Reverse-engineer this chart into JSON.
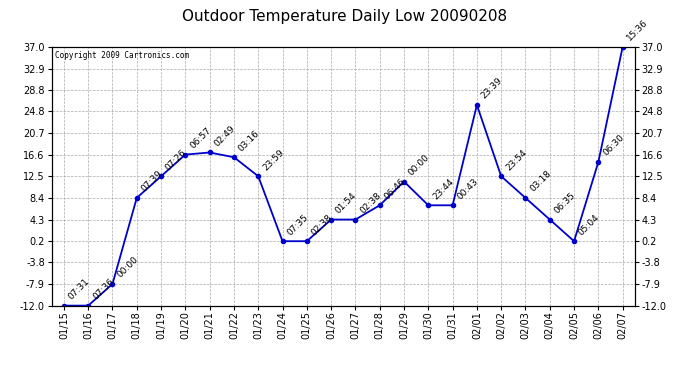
{
  "title": "Outdoor Temperature Daily Low 20090208",
  "copyright": "Copyright 2009 Cartronics.com",
  "x_labels": [
    "01/15",
    "01/16",
    "01/17",
    "01/18",
    "01/19",
    "01/20",
    "01/21",
    "01/22",
    "01/23",
    "01/24",
    "01/25",
    "01/26",
    "01/27",
    "01/28",
    "01/29",
    "01/30",
    "01/31",
    "02/01",
    "02/02",
    "02/03",
    "02/04",
    "02/05",
    "02/06",
    "02/07"
  ],
  "x_indices": [
    0,
    1,
    2,
    3,
    4,
    5,
    6,
    7,
    8,
    9,
    10,
    11,
    12,
    13,
    14,
    15,
    16,
    17,
    18,
    19,
    20,
    21,
    22,
    23
  ],
  "y_values": [
    -12.0,
    -12.0,
    -7.9,
    8.4,
    12.5,
    16.6,
    17.0,
    16.1,
    12.5,
    0.2,
    0.2,
    4.3,
    4.3,
    7.0,
    11.5,
    7.0,
    7.0,
    26.0,
    12.5,
    8.4,
    4.3,
    0.2,
    15.2,
    37.0
  ],
  "point_labels": [
    "07:31",
    "07:36",
    "00:00",
    "07:39",
    "07:26",
    "06:57",
    "02:49",
    "03:16",
    "23:59",
    "07:35",
    "02:38",
    "01:54",
    "02:38",
    "06:46",
    "00:00",
    "23:44",
    "00:43",
    "23:39",
    "23:54",
    "03:18",
    "06:35",
    "05:04",
    "06:30",
    "15:36"
  ],
  "y_ticks": [
    37.0,
    32.9,
    28.8,
    24.8,
    20.7,
    16.6,
    12.5,
    8.4,
    4.3,
    0.2,
    -3.8,
    -7.9,
    -12.0
  ],
  "line_color": "#0000CC",
  "background_color": "#FFFFFF",
  "grid_color": "#AAAAAA",
  "title_fontsize": 11,
  "tick_label_fontsize": 7,
  "point_label_fontsize": 6.5,
  "ylim_min": -12.0,
  "ylim_max": 37.0
}
